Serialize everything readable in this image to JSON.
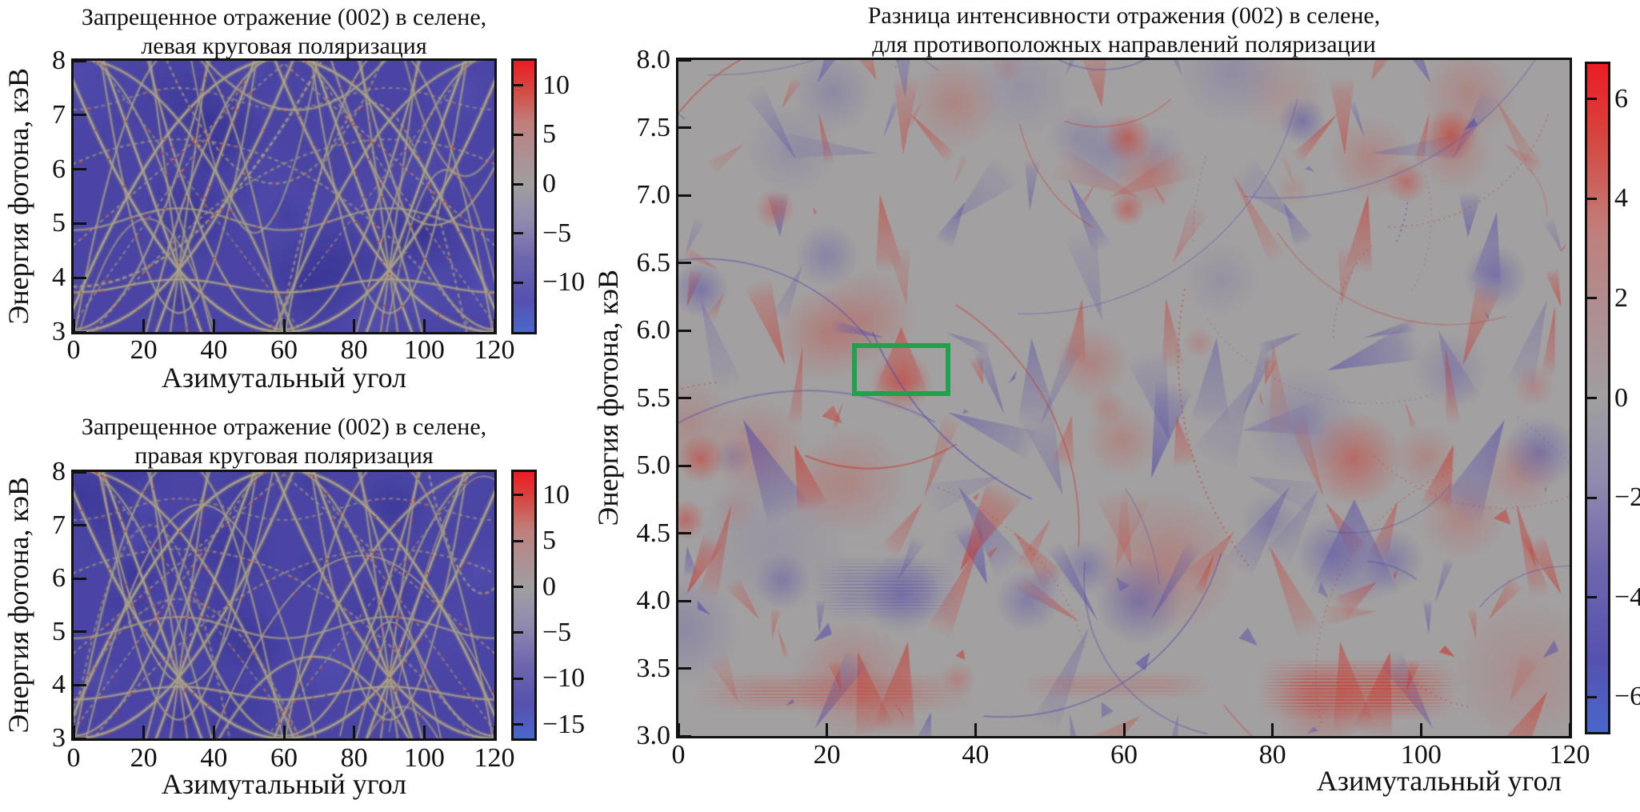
{
  "figure": {
    "background": "#ffffff",
    "description": "Three simulated X-ray reflection heatmaps for the forbidden (002) reflection in selenium"
  },
  "palette": {
    "axis_color": "#111111",
    "left_heatmap_bg": "#4a45a4",
    "left_heatmap_line": "#aca288",
    "left_heatmap_speckle": "#ce3028",
    "right_heatmap_bg": "#a3a0a1",
    "right_feature_red": "#c9382d",
    "right_feature_blue": "#544caa",
    "annotation_green": "#1fa24d",
    "colormap_positive": [
      [
        "0",
        "#a19ea0"
      ],
      [
        "0.25",
        "#ad8f92"
      ],
      [
        "0.5",
        "#c07f7c"
      ],
      [
        "0.78",
        "#d6453f"
      ],
      [
        "1",
        "#ec1c24"
      ]
    ],
    "colormap_negative": [
      [
        "0.25",
        "#908aaf"
      ],
      [
        "0.5",
        "#6f67ad"
      ],
      [
        "0.78",
        "#5551af"
      ],
      [
        "1",
        "#4a67cb"
      ]
    ]
  },
  "chart_data": [
    {
      "id": "left_top",
      "type": "heatmap",
      "title_lines": [
        "Запрещенное отражение (002) в селене,",
        "левая круговая поляризация"
      ],
      "xlabel": "Азимутальный угол",
      "ylabel": "Энергия фотона, кэВ",
      "xlim": [
        0,
        120
      ],
      "ylim": [
        3,
        8
      ],
      "xtick_values": [
        0,
        20,
        40,
        60,
        80,
        100,
        120
      ],
      "xtick_labels": [
        "0",
        "20",
        "40",
        "60",
        "80",
        "100",
        "120"
      ],
      "ytick_values": [
        8,
        7,
        6,
        5,
        4,
        3
      ],
      "ytick_labels": [
        "8",
        "7",
        "6",
        "5",
        "4",
        "3"
      ],
      "colorbar": {
        "vmin": -15,
        "vmax": 12.5,
        "tick_values": [
          10,
          5,
          0,
          -5,
          -10
        ],
        "tick_labels": [
          "10",
          "5",
          "0",
          "−5",
          "−10"
        ]
      },
      "pattern": "dark indigo field crossed by pale tan Kossel-line arcs with red speckles, log intensity scale",
      "render_seed": 7
    },
    {
      "id": "left_bottom",
      "type": "heatmap",
      "title_lines": [
        "Запрещенное отражение (002) в селене,",
        "правая круговая поляризация"
      ],
      "xlabel": "Азимутальный угол",
      "ylabel": "Энергия фотона, кэВ",
      "xlim": [
        0,
        120
      ],
      "ylim": [
        3,
        8
      ],
      "xtick_values": [
        0,
        20,
        40,
        60,
        80,
        100,
        120
      ],
      "xtick_labels": [
        "0",
        "20",
        "40",
        "60",
        "80",
        "100",
        "120"
      ],
      "ytick_values": [
        8,
        7,
        6,
        5,
        4,
        3
      ],
      "ytick_labels": [
        "8",
        "7",
        "6",
        "5",
        "4",
        "3"
      ],
      "colorbar": {
        "vmin": -16.5,
        "vmax": 12.5,
        "tick_values": [
          10,
          5,
          0,
          -5,
          -10,
          -15
        ],
        "tick_labels": [
          "10",
          "5",
          "0",
          "−5",
          "−10",
          "−15"
        ]
      },
      "pattern": "dark indigo field crossed by pale tan Kossel-line arcs with red speckles, log intensity scale",
      "render_seed": 13
    },
    {
      "id": "right_difference",
      "type": "heatmap",
      "title_lines": [
        "Разница интенсивности отражения (002) в селене,",
        "для противоположных направлений поляризации"
      ],
      "xlabel": "Азимутальный угол",
      "ylabel": "Энергия фотона, кэВ",
      "xlim": [
        0,
        120
      ],
      "ylim": [
        3,
        8
      ],
      "xtick_values": [
        0,
        20,
        40,
        60,
        80,
        100,
        120
      ],
      "xtick_labels": [
        "0",
        "20",
        "40",
        "60",
        "80",
        "100",
        "120"
      ],
      "ytick_values": [
        8,
        7.5,
        7,
        6.5,
        6,
        5.5,
        5,
        4.5,
        4,
        3.5,
        3
      ],
      "ytick_labels": [
        "8.0",
        "7.5",
        "7.0",
        "6.5",
        "6.0",
        "5.5",
        "5.0",
        "4.5",
        "4.0",
        "3.5",
        "3.0"
      ],
      "colorbar": {
        "vmin": -6.7,
        "vmax": 6.7,
        "tick_values": [
          6,
          4,
          2,
          0,
          -2,
          -4,
          -6
        ],
        "tick_labels": [
          "6",
          "4",
          "2",
          "0",
          "−2",
          "−4",
          "−6"
        ]
      },
      "annotation_rect": {
        "x": [
          24,
          36
        ],
        "y": [
          5.55,
          5.87
        ],
        "color": "#1fa24d"
      },
      "pattern": "gray field with kaleidoscopic red and blue-violet wedge features; green ROI rectangle",
      "render_seed": 3
    }
  ]
}
